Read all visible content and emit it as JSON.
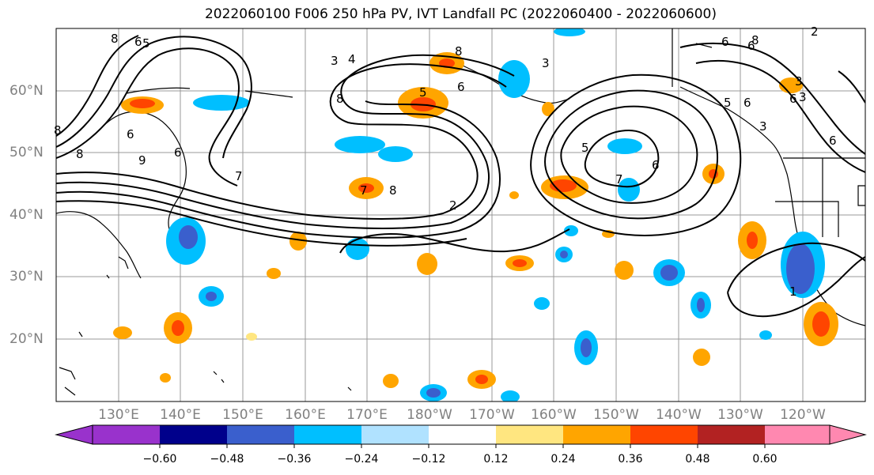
{
  "title": "2022060100 F006 250 hPa PV, IVT Landfall PC (2022060400 - 2022060600)",
  "lat_labels": [
    "60°N",
    "50°N",
    "40°N",
    "30°N",
    "20°N"
  ],
  "lon_labels": [
    "130°E",
    "140°E",
    "150°E",
    "160°E",
    "170°E",
    "180°W",
    "170°W",
    "160°W",
    "150°W",
    "140°W",
    "130°W",
    "120°W"
  ],
  "colorbar": {
    "ticks": [
      "−0.60",
      "−0.48",
      "−0.36",
      "−0.24",
      "−0.12",
      "0.12",
      "0.24",
      "0.36",
      "0.48",
      "0.60"
    ],
    "colors": [
      "#9932cc",
      "#00008b",
      "#3a5fcd",
      "#00bfff",
      "#b0e2ff",
      "#ffffff",
      "#ffe680",
      "#ffa500",
      "#ff4500",
      "#b22222",
      "#ff88b0"
    ]
  },
  "contour_labels": [
    "8",
    "6",
    "5",
    "3",
    "4",
    "8",
    "6",
    "5",
    "3",
    "8",
    "6",
    "5",
    "6",
    "3",
    "2",
    "8",
    "6",
    "8",
    "9",
    "7",
    "6",
    "8",
    "7",
    "8",
    "6",
    "2",
    "7",
    "6",
    "5",
    "3",
    "6",
    "6",
    "3",
    "1"
  ],
  "colors": {
    "fill_colors": [
      "#9932cc",
      "#00008b",
      "#3a5fcd",
      "#00bfff",
      "#b0e2ff",
      "#ffe680",
      "#ffa500",
      "#ff4500",
      "#b22222"
    ]
  }
}
